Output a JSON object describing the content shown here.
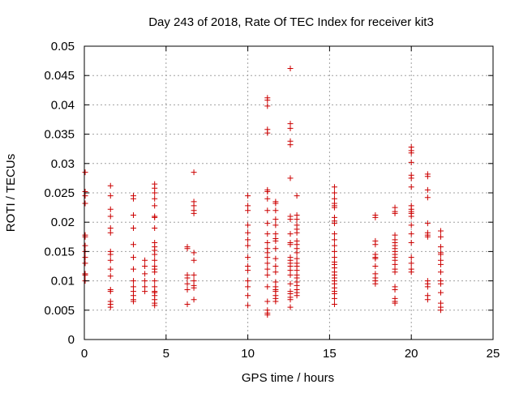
{
  "chart_data": {
    "type": "scatter",
    "title": "Day 243 of 2018, Rate Of TEC Index for receiver kit3",
    "xlabel": "GPS time / hours",
    "ylabel": "ROTI / TECUs",
    "xlim": [
      0,
      25
    ],
    "ylim": [
      0,
      0.05
    ],
    "x_ticks": [
      0,
      5,
      10,
      15,
      20,
      25
    ],
    "y_ticks": [
      0,
      0.005,
      0.01,
      0.015,
      0.02,
      0.025,
      0.03,
      0.035,
      0.04,
      0.045,
      0.05
    ],
    "x_tick_labels": [
      "0",
      "5",
      "10",
      "15",
      "20",
      "25"
    ],
    "y_tick_labels": [
      "0",
      "0.005",
      "0.01",
      "0.015",
      "0.02",
      "0.025",
      "0.03",
      "0.035",
      "0.04",
      "0.045",
      "0.05"
    ],
    "grid": true,
    "marker": "+",
    "color": "#cc0000",
    "series": [
      {
        "name": "kit3",
        "points": [
          [
            0.05,
            0.0285
          ],
          [
            0.05,
            0.0252
          ],
          [
            0.05,
            0.0245
          ],
          [
            0.05,
            0.0232
          ],
          [
            0.05,
            0.0178
          ],
          [
            0.05,
            0.0175
          ],
          [
            0.05,
            0.016
          ],
          [
            0.05,
            0.015
          ],
          [
            0.05,
            0.014
          ],
          [
            0.05,
            0.013
          ],
          [
            0.05,
            0.0112
          ],
          [
            0.05,
            0.011
          ],
          [
            0.05,
            0.01
          ],
          [
            1.6,
            0.0262
          ],
          [
            1.6,
            0.0245
          ],
          [
            1.6,
            0.0222
          ],
          [
            1.6,
            0.021
          ],
          [
            1.6,
            0.019
          ],
          [
            1.6,
            0.0182
          ],
          [
            1.6,
            0.015
          ],
          [
            1.6,
            0.0145
          ],
          [
            1.6,
            0.0135
          ],
          [
            1.6,
            0.012
          ],
          [
            1.6,
            0.0108
          ],
          [
            1.6,
            0.0085
          ],
          [
            1.6,
            0.0082
          ],
          [
            1.6,
            0.0065
          ],
          [
            1.6,
            0.006
          ],
          [
            1.6,
            0.0055
          ],
          [
            3.0,
            0.0245
          ],
          [
            3.0,
            0.024
          ],
          [
            3.0,
            0.0212
          ],
          [
            3.0,
            0.019
          ],
          [
            3.0,
            0.0162
          ],
          [
            3.0,
            0.014
          ],
          [
            3.0,
            0.012
          ],
          [
            3.0,
            0.01
          ],
          [
            3.0,
            0.009
          ],
          [
            3.0,
            0.0082
          ],
          [
            3.0,
            0.0075
          ],
          [
            3.0,
            0.0068
          ],
          [
            3.0,
            0.0065
          ],
          [
            3.7,
            0.0135
          ],
          [
            3.7,
            0.0125
          ],
          [
            3.7,
            0.0112
          ],
          [
            3.7,
            0.01
          ],
          [
            3.7,
            0.009
          ],
          [
            3.7,
            0.0082
          ],
          [
            4.3,
            0.0265
          ],
          [
            4.3,
            0.0258
          ],
          [
            4.3,
            0.025
          ],
          [
            4.3,
            0.024
          ],
          [
            4.3,
            0.0228
          ],
          [
            4.3,
            0.021
          ],
          [
            4.3,
            0.0208
          ],
          [
            4.3,
            0.019
          ],
          [
            4.3,
            0.0165
          ],
          [
            4.3,
            0.0158
          ],
          [
            4.3,
            0.0152
          ],
          [
            4.3,
            0.0145
          ],
          [
            4.3,
            0.0135
          ],
          [
            4.3,
            0.0125
          ],
          [
            4.3,
            0.012
          ],
          [
            4.3,
            0.0115
          ],
          [
            4.3,
            0.01
          ],
          [
            4.3,
            0.009
          ],
          [
            4.3,
            0.0082
          ],
          [
            4.3,
            0.008
          ],
          [
            4.3,
            0.0075
          ],
          [
            4.3,
            0.0068
          ],
          [
            4.3,
            0.0062
          ],
          [
            4.3,
            0.0058
          ],
          [
            6.3,
            0.0158
          ],
          [
            6.3,
            0.0155
          ],
          [
            6.3,
            0.011
          ],
          [
            6.3,
            0.0105
          ],
          [
            6.3,
            0.0095
          ],
          [
            6.3,
            0.0085
          ],
          [
            6.3,
            0.006
          ],
          [
            6.7,
            0.0285
          ],
          [
            6.7,
            0.0235
          ],
          [
            6.7,
            0.0228
          ],
          [
            6.7,
            0.022
          ],
          [
            6.7,
            0.0215
          ],
          [
            6.7,
            0.0148
          ],
          [
            6.7,
            0.0135
          ],
          [
            6.7,
            0.011
          ],
          [
            6.7,
            0.01
          ],
          [
            6.7,
            0.0092
          ],
          [
            6.7,
            0.0088
          ],
          [
            6.7,
            0.0068
          ],
          [
            10.0,
            0.0245
          ],
          [
            10.0,
            0.0228
          ],
          [
            10.0,
            0.022
          ],
          [
            10.0,
            0.0195
          ],
          [
            10.0,
            0.0182
          ],
          [
            10.0,
            0.017
          ],
          [
            10.0,
            0.016
          ],
          [
            10.0,
            0.014
          ],
          [
            10.0,
            0.0125
          ],
          [
            10.0,
            0.0118
          ],
          [
            10.0,
            0.01
          ],
          [
            10.0,
            0.009
          ],
          [
            10.0,
            0.0075
          ],
          [
            10.0,
            0.0058
          ],
          [
            11.2,
            0.0412
          ],
          [
            11.2,
            0.0408
          ],
          [
            11.2,
            0.0398
          ],
          [
            11.2,
            0.0358
          ],
          [
            11.2,
            0.0352
          ],
          [
            11.2,
            0.0255
          ],
          [
            11.2,
            0.0252
          ],
          [
            11.2,
            0.024
          ],
          [
            11.2,
            0.022
          ],
          [
            11.2,
            0.0198
          ],
          [
            11.2,
            0.018
          ],
          [
            11.2,
            0.0165
          ],
          [
            11.2,
            0.0155
          ],
          [
            11.2,
            0.0148
          ],
          [
            11.2,
            0.014
          ],
          [
            11.2,
            0.013
          ],
          [
            11.2,
            0.012
          ],
          [
            11.2,
            0.011
          ],
          [
            11.2,
            0.009
          ],
          [
            11.2,
            0.0065
          ],
          [
            11.2,
            0.005
          ],
          [
            11.2,
            0.0045
          ],
          [
            11.2,
            0.0042
          ],
          [
            11.7,
            0.0235
          ],
          [
            11.7,
            0.0232
          ],
          [
            11.7,
            0.022
          ],
          [
            11.7,
            0.0205
          ],
          [
            11.7,
            0.0195
          ],
          [
            11.7,
            0.018
          ],
          [
            11.7,
            0.0172
          ],
          [
            11.7,
            0.0168
          ],
          [
            11.7,
            0.0155
          ],
          [
            11.7,
            0.0138
          ],
          [
            11.7,
            0.0125
          ],
          [
            11.7,
            0.0115
          ],
          [
            11.7,
            0.0098
          ],
          [
            11.7,
            0.009
          ],
          [
            11.7,
            0.0085
          ],
          [
            11.7,
            0.0082
          ],
          [
            11.7,
            0.0075
          ],
          [
            11.7,
            0.007
          ],
          [
            11.7,
            0.0065
          ],
          [
            12.6,
            0.0462
          ],
          [
            12.6,
            0.0368
          ],
          [
            12.6,
            0.036
          ],
          [
            12.6,
            0.0338
          ],
          [
            12.6,
            0.0332
          ],
          [
            12.6,
            0.0275
          ],
          [
            12.6,
            0.021
          ],
          [
            12.6,
            0.0205
          ],
          [
            12.6,
            0.018
          ],
          [
            12.6,
            0.0165
          ],
          [
            12.6,
            0.0162
          ],
          [
            12.6,
            0.014
          ],
          [
            12.6,
            0.0135
          ],
          [
            12.6,
            0.013
          ],
          [
            12.6,
            0.0125
          ],
          [
            12.6,
            0.0118
          ],
          [
            12.6,
            0.011
          ],
          [
            12.6,
            0.0095
          ],
          [
            12.6,
            0.0082
          ],
          [
            12.6,
            0.0078
          ],
          [
            12.6,
            0.0072
          ],
          [
            12.6,
            0.0068
          ],
          [
            12.6,
            0.0055
          ],
          [
            13.0,
            0.0245
          ],
          [
            13.0,
            0.0212
          ],
          [
            13.0,
            0.0205
          ],
          [
            13.0,
            0.0195
          ],
          [
            13.0,
            0.0188
          ],
          [
            13.0,
            0.0182
          ],
          [
            13.0,
            0.0168
          ],
          [
            13.0,
            0.0162
          ],
          [
            13.0,
            0.0155
          ],
          [
            13.0,
            0.0148
          ],
          [
            13.0,
            0.0138
          ],
          [
            13.0,
            0.013
          ],
          [
            13.0,
            0.0125
          ],
          [
            13.0,
            0.0118
          ],
          [
            13.0,
            0.011
          ],
          [
            13.0,
            0.0105
          ],
          [
            13.0,
            0.0098
          ],
          [
            13.0,
            0.0092
          ],
          [
            13.0,
            0.0085
          ],
          [
            13.0,
            0.008
          ],
          [
            13.0,
            0.0075
          ],
          [
            15.3,
            0.026
          ],
          [
            15.3,
            0.025
          ],
          [
            15.3,
            0.024
          ],
          [
            15.3,
            0.0232
          ],
          [
            15.3,
            0.0228
          ],
          [
            15.3,
            0.0225
          ],
          [
            15.3,
            0.0208
          ],
          [
            15.3,
            0.0202
          ],
          [
            15.3,
            0.0198
          ],
          [
            15.3,
            0.018
          ],
          [
            15.3,
            0.017
          ],
          [
            15.3,
            0.016
          ],
          [
            15.3,
            0.015
          ],
          [
            15.3,
            0.014
          ],
          [
            15.3,
            0.0132
          ],
          [
            15.3,
            0.0128
          ],
          [
            15.3,
            0.0122
          ],
          [
            15.3,
            0.0115
          ],
          [
            15.3,
            0.011
          ],
          [
            15.3,
            0.0105
          ],
          [
            15.3,
            0.01
          ],
          [
            15.3,
            0.0095
          ],
          [
            15.3,
            0.0088
          ],
          [
            15.3,
            0.0082
          ],
          [
            15.3,
            0.0078
          ],
          [
            15.3,
            0.007
          ],
          [
            15.3,
            0.006
          ],
          [
            17.8,
            0.0212
          ],
          [
            17.8,
            0.0208
          ],
          [
            17.8,
            0.0168
          ],
          [
            17.8,
            0.0162
          ],
          [
            17.8,
            0.0145
          ],
          [
            17.8,
            0.014
          ],
          [
            17.8,
            0.0138
          ],
          [
            17.8,
            0.0125
          ],
          [
            17.8,
            0.0112
          ],
          [
            17.8,
            0.0105
          ],
          [
            17.8,
            0.01
          ],
          [
            17.8,
            0.0095
          ],
          [
            19.0,
            0.0225
          ],
          [
            19.0,
            0.0218
          ],
          [
            19.0,
            0.0215
          ],
          [
            19.0,
            0.0178
          ],
          [
            19.0,
            0.017
          ],
          [
            19.0,
            0.0165
          ],
          [
            19.0,
            0.016
          ],
          [
            19.0,
            0.0155
          ],
          [
            19.0,
            0.015
          ],
          [
            19.0,
            0.0145
          ],
          [
            19.0,
            0.014
          ],
          [
            19.0,
            0.0135
          ],
          [
            19.0,
            0.0128
          ],
          [
            19.0,
            0.012
          ],
          [
            19.0,
            0.0115
          ],
          [
            19.0,
            0.009
          ],
          [
            19.0,
            0.0085
          ],
          [
            19.0,
            0.007
          ],
          [
            19.0,
            0.0065
          ],
          [
            19.0,
            0.0062
          ],
          [
            20.0,
            0.0328
          ],
          [
            20.0,
            0.0322
          ],
          [
            20.0,
            0.0318
          ],
          [
            20.0,
            0.0302
          ],
          [
            20.0,
            0.028
          ],
          [
            20.0,
            0.0275
          ],
          [
            20.0,
            0.026
          ],
          [
            20.0,
            0.0228
          ],
          [
            20.0,
            0.0222
          ],
          [
            20.0,
            0.0218
          ],
          [
            20.0,
            0.0215
          ],
          [
            20.0,
            0.021
          ],
          [
            20.0,
            0.0195
          ],
          [
            20.0,
            0.018
          ],
          [
            20.0,
            0.0165
          ],
          [
            20.0,
            0.014
          ],
          [
            20.0,
            0.013
          ],
          [
            20.0,
            0.012
          ],
          [
            20.0,
            0.0115
          ],
          [
            21.0,
            0.0282
          ],
          [
            21.0,
            0.0278
          ],
          [
            21.0,
            0.0255
          ],
          [
            21.0,
            0.0242
          ],
          [
            21.0,
            0.0198
          ],
          [
            21.0,
            0.0182
          ],
          [
            21.0,
            0.0178
          ],
          [
            21.0,
            0.0175
          ],
          [
            21.0,
            0.01
          ],
          [
            21.0,
            0.0095
          ],
          [
            21.0,
            0.009
          ],
          [
            21.0,
            0.0075
          ],
          [
            21.0,
            0.0068
          ],
          [
            21.8,
            0.0185
          ],
          [
            21.8,
            0.0175
          ],
          [
            21.8,
            0.0158
          ],
          [
            21.8,
            0.0148
          ],
          [
            21.8,
            0.0145
          ],
          [
            21.8,
            0.0135
          ],
          [
            21.8,
            0.0128
          ],
          [
            21.8,
            0.0115
          ],
          [
            21.8,
            0.01
          ],
          [
            21.8,
            0.0095
          ],
          [
            21.8,
            0.008
          ],
          [
            21.8,
            0.0062
          ],
          [
            21.8,
            0.0055
          ],
          [
            21.8,
            0.005
          ]
        ]
      }
    ]
  }
}
